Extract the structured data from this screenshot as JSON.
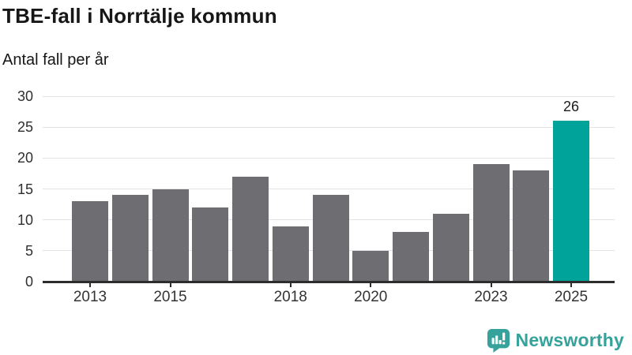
{
  "header": {
    "title": "TBE-fall i Norrtälje kommun",
    "subtitle": "Antal fall per år"
  },
  "branding": {
    "name": "Newsworthy",
    "icon": "newsworthy-speech-bubble-barchart-icon",
    "color": "#35a29c"
  },
  "colors": {
    "bar": "#6d6d72",
    "highlight": "#00a39a",
    "gridline": "#e3e3e5",
    "axis": "#2d2d2d",
    "title_text": "#171717",
    "tick_text": "#333333"
  },
  "chart_data": {
    "type": "bar",
    "title": "TBE-fall i Norrtälje kommun",
    "subtitle": "Antal fall per år",
    "categories": [
      "2013",
      "2014",
      "2015",
      "2016",
      "2017",
      "2018",
      "2019",
      "2020",
      "2021",
      "2022",
      "2023",
      "2024",
      "2025"
    ],
    "values": [
      13,
      14,
      15,
      12,
      17,
      9,
      14,
      5,
      8,
      11,
      19,
      18,
      26
    ],
    "highlight_index": 12,
    "value_label": {
      "index": 12,
      "text": "26"
    },
    "xlabel": "",
    "ylabel": "Antal fall per år",
    "ylim": [
      0,
      30
    ],
    "yticks": [
      0,
      5,
      10,
      15,
      20,
      25,
      30
    ],
    "xticks": [
      {
        "index": 0,
        "label": "2013"
      },
      {
        "index": 2,
        "label": "2015"
      },
      {
        "index": 5,
        "label": "2018"
      },
      {
        "index": 7,
        "label": "2020"
      },
      {
        "index": 10,
        "label": "2023"
      },
      {
        "index": 12,
        "label": "2025"
      }
    ],
    "grid": true,
    "legend": false
  }
}
